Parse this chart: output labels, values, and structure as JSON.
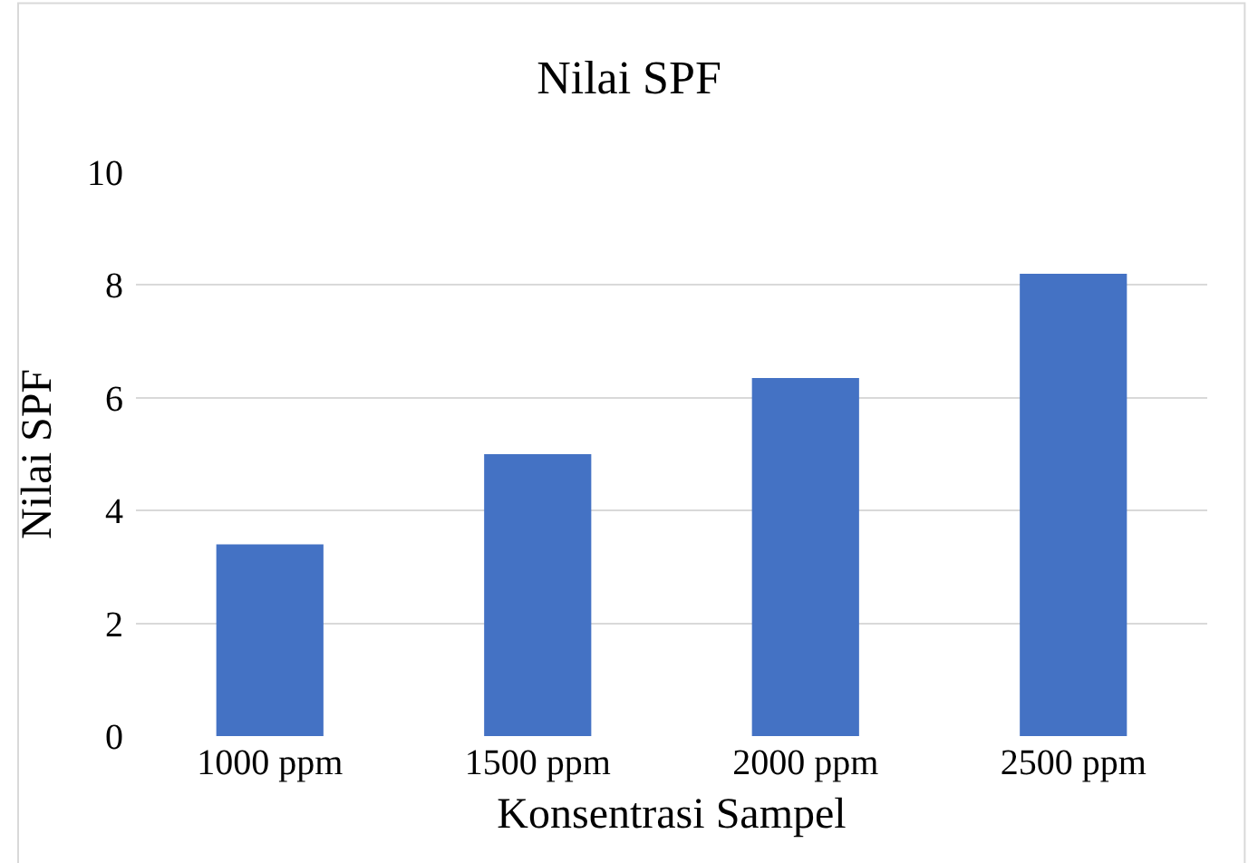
{
  "chart_data": {
    "type": "bar",
    "title": "Nilai SPF",
    "xlabel": "Konsentrasi Sampel",
    "ylabel": "Nilai SPF",
    "categories": [
      "1000 ppm",
      "1500 ppm",
      "2000 ppm",
      "2500 ppm"
    ],
    "values": [
      3.4,
      5.0,
      6.35,
      8.2
    ],
    "color": "#4472c4",
    "ylim": [
      0,
      10
    ],
    "yticks": [
      0,
      2,
      4,
      6,
      8,
      10
    ],
    "grid": "y",
    "legend": false
  }
}
